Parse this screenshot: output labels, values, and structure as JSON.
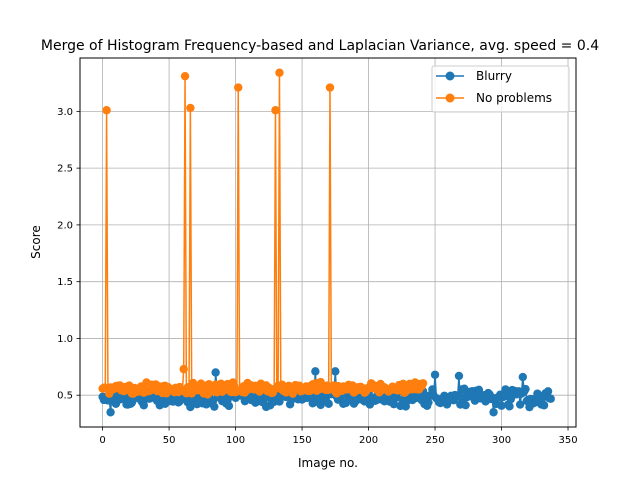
{
  "chart_data": {
    "type": "line",
    "title": "Merge of Histogram Frequency-based and Laplacian Variance, avg. speed = 0.4",
    "xlabel": "Image no.",
    "ylabel": "Score",
    "xlim": [
      -17,
      356
    ],
    "ylim": [
      0.22,
      3.47
    ],
    "xticks": [
      0,
      50,
      100,
      150,
      200,
      250,
      300,
      350
    ],
    "yticks": [
      0.5,
      1.0,
      1.5,
      2.0,
      2.5,
      3.0
    ],
    "xtick_labels": [
      "0",
      "50",
      "100",
      "150",
      "200",
      "250",
      "300",
      "350"
    ],
    "ytick_labels": [
      "0.5",
      "1.0",
      "1.5",
      "2.0",
      "2.5",
      "3.0"
    ],
    "grid": true,
    "legend_position": "upper right",
    "series": [
      {
        "name": "Blurry",
        "color": "#1f77b4",
        "n_points": 338,
        "base": 0.48,
        "jitter": 0.09,
        "seed": 17,
        "peaks": [
          {
            "x": 6,
            "y": 0.35
          },
          {
            "x": 85,
            "y": 0.7
          },
          {
            "x": 160,
            "y": 0.71
          },
          {
            "x": 175,
            "y": 0.71
          },
          {
            "x": 250,
            "y": 0.68
          },
          {
            "x": 268,
            "y": 0.67
          },
          {
            "x": 316,
            "y": 0.66
          },
          {
            "x": 294,
            "y": 0.35
          }
        ]
      },
      {
        "name": "No problems",
        "color": "#ff7f0e",
        "n_points": 242,
        "base": 0.56,
        "jitter": 0.06,
        "seed": 5,
        "peaks": [
          {
            "x": 3,
            "y": 3.01
          },
          {
            "x": 62,
            "y": 3.31
          },
          {
            "x": 66,
            "y": 3.03
          },
          {
            "x": 102,
            "y": 3.21
          },
          {
            "x": 130,
            "y": 3.01
          },
          {
            "x": 133,
            "y": 3.34
          },
          {
            "x": 171,
            "y": 3.21
          },
          {
            "x": 61,
            "y": 0.73
          }
        ]
      }
    ]
  }
}
